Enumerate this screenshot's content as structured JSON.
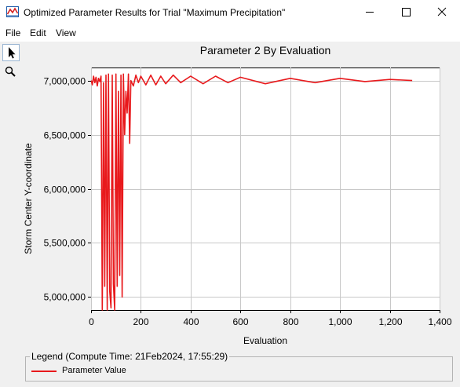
{
  "window": {
    "title": "Optimized Parameter Results for Trial \"Maximum Precipitation\"",
    "controls": [
      "minimize-icon",
      "maximize-icon",
      "close-icon"
    ]
  },
  "menu": {
    "file": "File",
    "edit": "Edit",
    "view": "View"
  },
  "tools": [
    "pointer-icon",
    "zoom-icon"
  ],
  "colors": {
    "series": "#e8191c",
    "grid": "#c8c8c8",
    "plot_bg": "#ffffff"
  },
  "chart_data": {
    "type": "line",
    "title": "Parameter 2 By Evaluation",
    "xlabel": "Evaluation",
    "ylabel": "Storm Center Y-coordinate",
    "xlim": [
      0,
      1400
    ],
    "ylim": [
      4880000,
      7120000
    ],
    "x_ticks": [
      0,
      200,
      400,
      600,
      800,
      1000,
      1200,
      1400
    ],
    "x_tick_labels": [
      "0",
      "200",
      "400",
      "600",
      "800",
      "1,000",
      "1,200",
      "1,400"
    ],
    "y_ticks": [
      5000000,
      5500000,
      6000000,
      6500000,
      7000000
    ],
    "y_tick_labels": [
      "5,000,000",
      "5,500,000",
      "6,000,000",
      "6,500,000",
      "7,000,000"
    ],
    "grid": true,
    "series": [
      {
        "name": "Parameter Value",
        "x": [
          1,
          5,
          10,
          15,
          20,
          25,
          30,
          35,
          40,
          45,
          50,
          55,
          60,
          65,
          70,
          75,
          80,
          85,
          90,
          95,
          100,
          105,
          110,
          115,
          120,
          125,
          130,
          135,
          140,
          145,
          150,
          155,
          160,
          170,
          180,
          190,
          200,
          220,
          240,
          260,
          280,
          300,
          330,
          360,
          400,
          450,
          500,
          550,
          600,
          700,
          800,
          900,
          1000,
          1100,
          1200,
          1290
        ],
        "values": [
          7000000,
          6960000,
          7040000,
          6980000,
          7030000,
          6950000,
          7020000,
          6990000,
          7040000,
          4880000,
          6980000,
          5100000,
          7050000,
          4880000,
          7060000,
          5050000,
          4900000,
          7050000,
          5120000,
          4880000,
          7060000,
          5100000,
          6900000,
          5200000,
          7050000,
          5000000,
          7060000,
          6500000,
          6900000,
          6700000,
          7060000,
          6420000,
          7000000,
          6950000,
          7050000,
          6980000,
          7040000,
          6960000,
          7050000,
          6960000,
          7040000,
          6970000,
          7050000,
          6980000,
          7040000,
          6970000,
          7040000,
          6980000,
          7030000,
          6970000,
          7020000,
          6980000,
          7020000,
          6990000,
          7010000,
          7000000
        ]
      }
    ]
  },
  "legend": {
    "title": "Legend (Compute Time: 21Feb2024, 17:55:29)",
    "entries": [
      {
        "label": "Parameter Value"
      }
    ]
  }
}
